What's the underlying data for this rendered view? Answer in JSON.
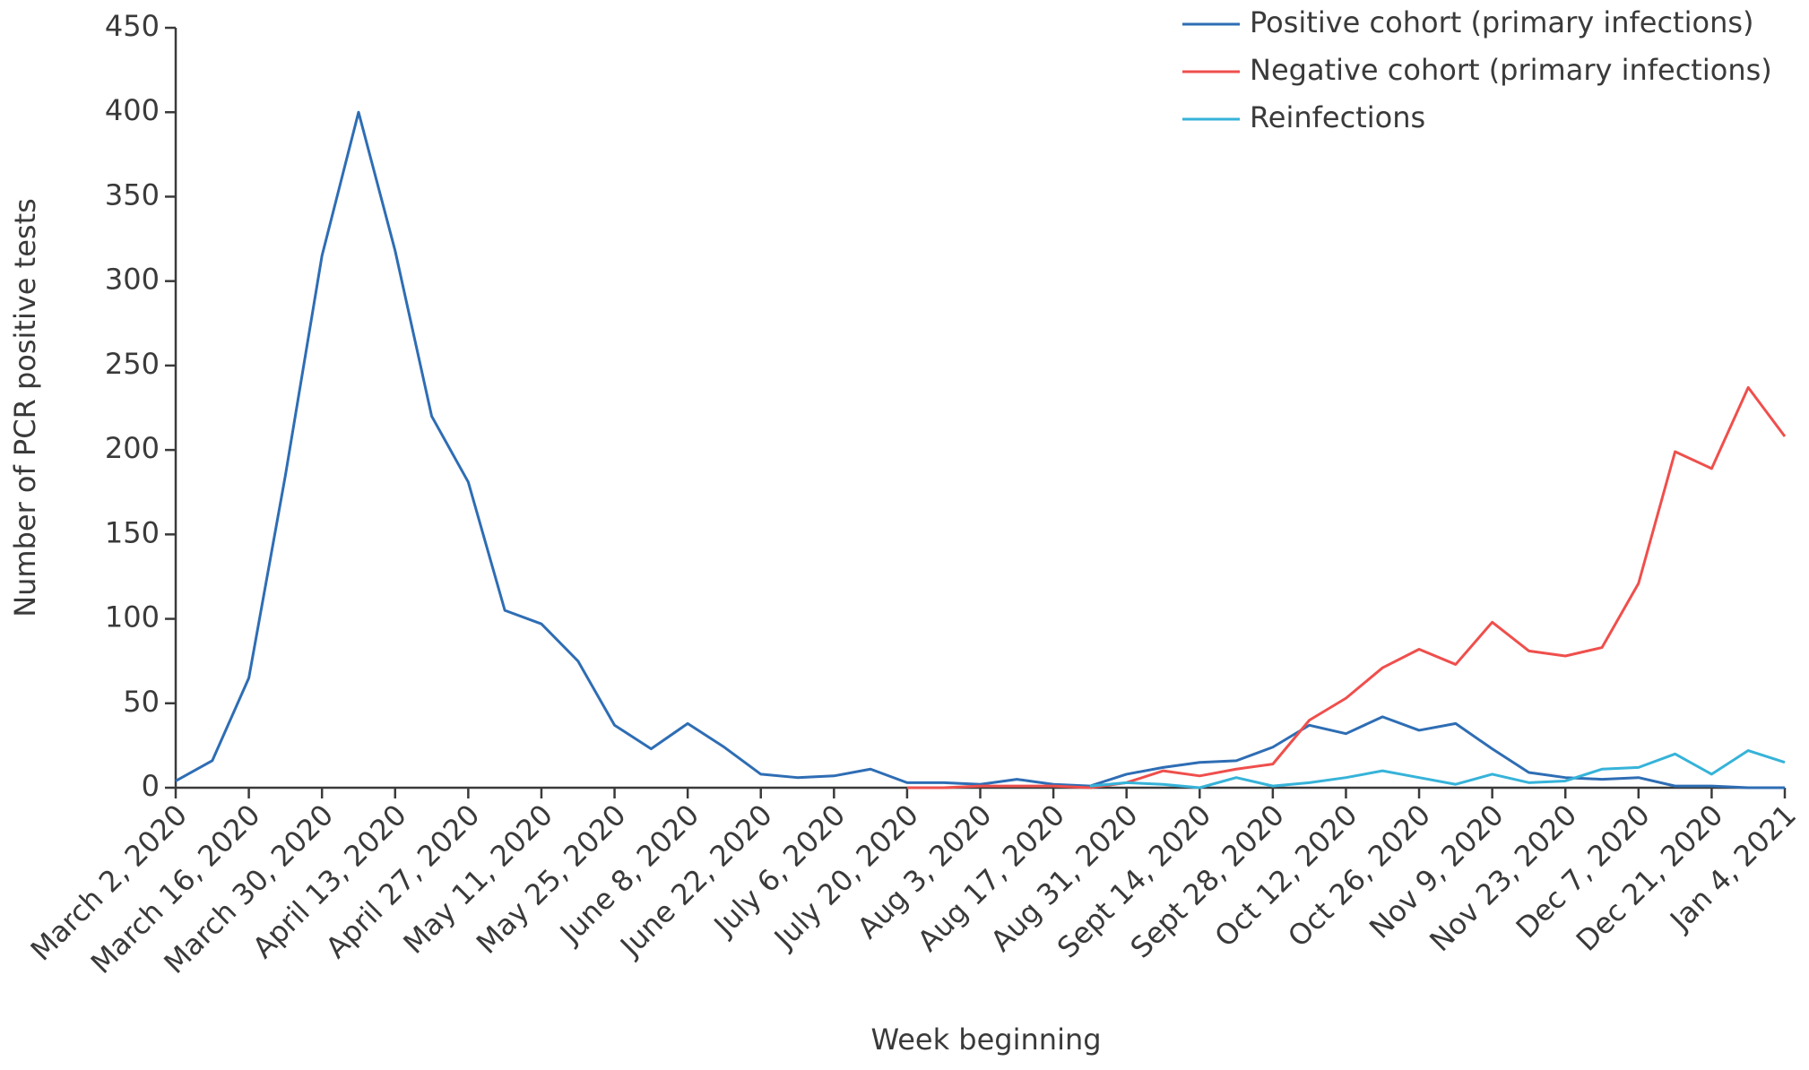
{
  "chart_data": {
    "type": "line",
    "x_label": "Week beginning",
    "y_label": "Number of PCR positive tests",
    "categories": [
      "March 2, 2020",
      null,
      "March 16, 2020",
      null,
      "March 30, 2020",
      null,
      "April 13, 2020",
      null,
      "April 27, 2020",
      null,
      "May 11, 2020",
      null,
      "May 25, 2020",
      null,
      "June 8, 2020",
      null,
      "June 22, 2020",
      null,
      "July 6, 2020",
      null,
      "July 20, 2020",
      null,
      "Aug 3, 2020",
      null,
      "Aug 17, 2020",
      null,
      "Aug 31, 2020",
      null,
      "Sept 14, 2020",
      null,
      "Sept 28, 2020",
      null,
      "Oct 12, 2020",
      null,
      "Oct 26, 2020",
      null,
      "Nov 9, 2020",
      null,
      "Nov 23, 2020",
      null,
      "Dec 7, 2020",
      null,
      "Dec 21, 2020",
      null,
      "Jan 4, 2021"
    ],
    "series": [
      {
        "name": "Positive cohort (primary infections)",
        "color": "#2e6db4",
        "values": [
          4,
          16,
          65,
          185,
          315,
          400,
          318,
          220,
          181,
          105,
          97,
          75,
          37,
          23,
          38,
          24,
          8,
          6,
          7,
          11,
          3,
          3,
          2,
          5,
          2,
          1,
          8,
          12,
          15,
          16,
          24,
          37,
          32,
          42,
          34,
          38,
          23,
          9,
          6,
          5,
          6,
          1,
          1,
          0,
          0
        ]
      },
      {
        "name": "Negative cohort (primary infections)",
        "color": "#ef4f4c",
        "values": [
          null,
          null,
          null,
          null,
          null,
          null,
          null,
          null,
          null,
          null,
          null,
          null,
          null,
          null,
          null,
          null,
          null,
          null,
          null,
          null,
          0,
          0,
          1,
          1,
          1,
          0,
          3,
          10,
          7,
          11,
          14,
          40,
          53,
          71,
          82,
          73,
          98,
          81,
          78,
          83,
          121,
          199,
          189,
          237,
          208
        ]
      },
      {
        "name": "Reinfections",
        "color": "#36b3d9",
        "values": [
          null,
          null,
          null,
          null,
          null,
          null,
          null,
          null,
          null,
          null,
          null,
          null,
          null,
          null,
          null,
          null,
          null,
          null,
          null,
          null,
          null,
          null,
          null,
          null,
          null,
          1,
          3,
          2,
          0,
          6,
          1,
          3,
          6,
          10,
          6,
          2,
          8,
          3,
          4,
          11,
          12,
          20,
          8,
          22,
          15
        ]
      }
    ],
    "ylim": [
      0,
      450
    ],
    "yticks": [
      0,
      50,
      100,
      150,
      200,
      250,
      300,
      350,
      400,
      450
    ],
    "grid": false,
    "legend": "upper right"
  }
}
